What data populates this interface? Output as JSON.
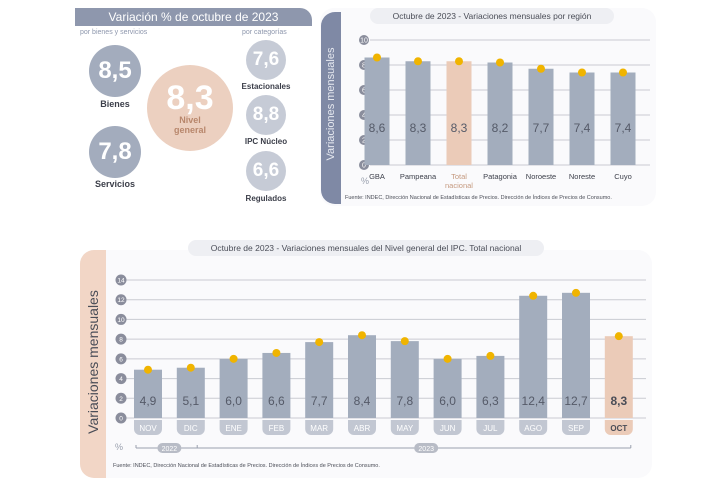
{
  "summary": {
    "title": "Variación % de octubre de 2023",
    "left_caption": "por bienes y servicios",
    "right_caption": "por categorías",
    "bienes": {
      "value": "8,5",
      "label": "Bienes"
    },
    "servicios": {
      "value": "7,8",
      "label": "Servicios"
    },
    "nivel_general": {
      "value": "8,3",
      "label_line1": "Nivel",
      "label_line2": "general"
    },
    "estacionales": {
      "value": "7,6",
      "label": "Estacionales"
    },
    "nucleo": {
      "value": "8,8",
      "label": "IPC Núcleo"
    },
    "regulados": {
      "value": "6,6",
      "label": "Regulados"
    }
  },
  "colors": {
    "bar": "#a3adbd",
    "highlight_bar": "#ebcbb8",
    "marker": "#f0b400",
    "slate_band": "#7f89a5",
    "peach_band": "#f2d6c6",
    "axis_badge": "#8a8d9c"
  },
  "chart_data": [
    {
      "type": "bar",
      "title": "Octubre de 2023 - Variaciones mensuales por región",
      "ylabel": "Variaciones mensuales",
      "yunit": "%",
      "ylim": [
        0,
        10
      ],
      "yticks": [
        0,
        2,
        4,
        6,
        8,
        10
      ],
      "categories": [
        "GBA",
        "Pampeana",
        "Total nacional",
        "Patagonia",
        "Noroeste",
        "Noreste",
        "Cuyo"
      ],
      "values": [
        8.6,
        8.3,
        8.3,
        8.2,
        7.7,
        7.4,
        7.4
      ],
      "value_labels": [
        "8,6",
        "8,3",
        "8,3",
        "8,2",
        "7,7",
        "7,4",
        "7,4"
      ],
      "highlight": "Total nacional",
      "grid": true,
      "source": "Fuente: INDEC, Dirección Nacional de Estadísticas de Precios. Dirección de Índices de Precios de Consumo."
    },
    {
      "type": "bar",
      "title": "Octubre de 2023 - Variaciones mensuales del Nivel general del IPC. Total nacional",
      "ylabel": "Variaciones mensuales",
      "yunit": "%",
      "ylim": [
        0,
        14
      ],
      "yticks": [
        0,
        2,
        4,
        6,
        8,
        10,
        12,
        14
      ],
      "categories": [
        "NOV",
        "DIC",
        "ENE",
        "FEB",
        "MAR",
        "ABR",
        "MAY",
        "JUN",
        "JUL",
        "AGO",
        "SEP",
        "OCT"
      ],
      "values": [
        4.9,
        5.1,
        6.0,
        6.6,
        7.7,
        8.4,
        7.8,
        6.0,
        6.3,
        12.4,
        12.7,
        8.3
      ],
      "value_labels": [
        "4,9",
        "5,1",
        "6,0",
        "6,6",
        "7,7",
        "8,4",
        "7,8",
        "6,0",
        "6,3",
        "12,4",
        "12,7",
        "8,3"
      ],
      "highlight": "OCT",
      "years": [
        {
          "label": "2022",
          "span": [
            "NOV",
            "DIC"
          ]
        },
        {
          "label": "2023",
          "span": [
            "ENE",
            "OCT"
          ]
        }
      ],
      "grid": true,
      "source": "Fuente: INDEC, Dirección Nacional de Estadísticas de Precios. Dirección de Índices de Precios de Consumo."
    }
  ]
}
